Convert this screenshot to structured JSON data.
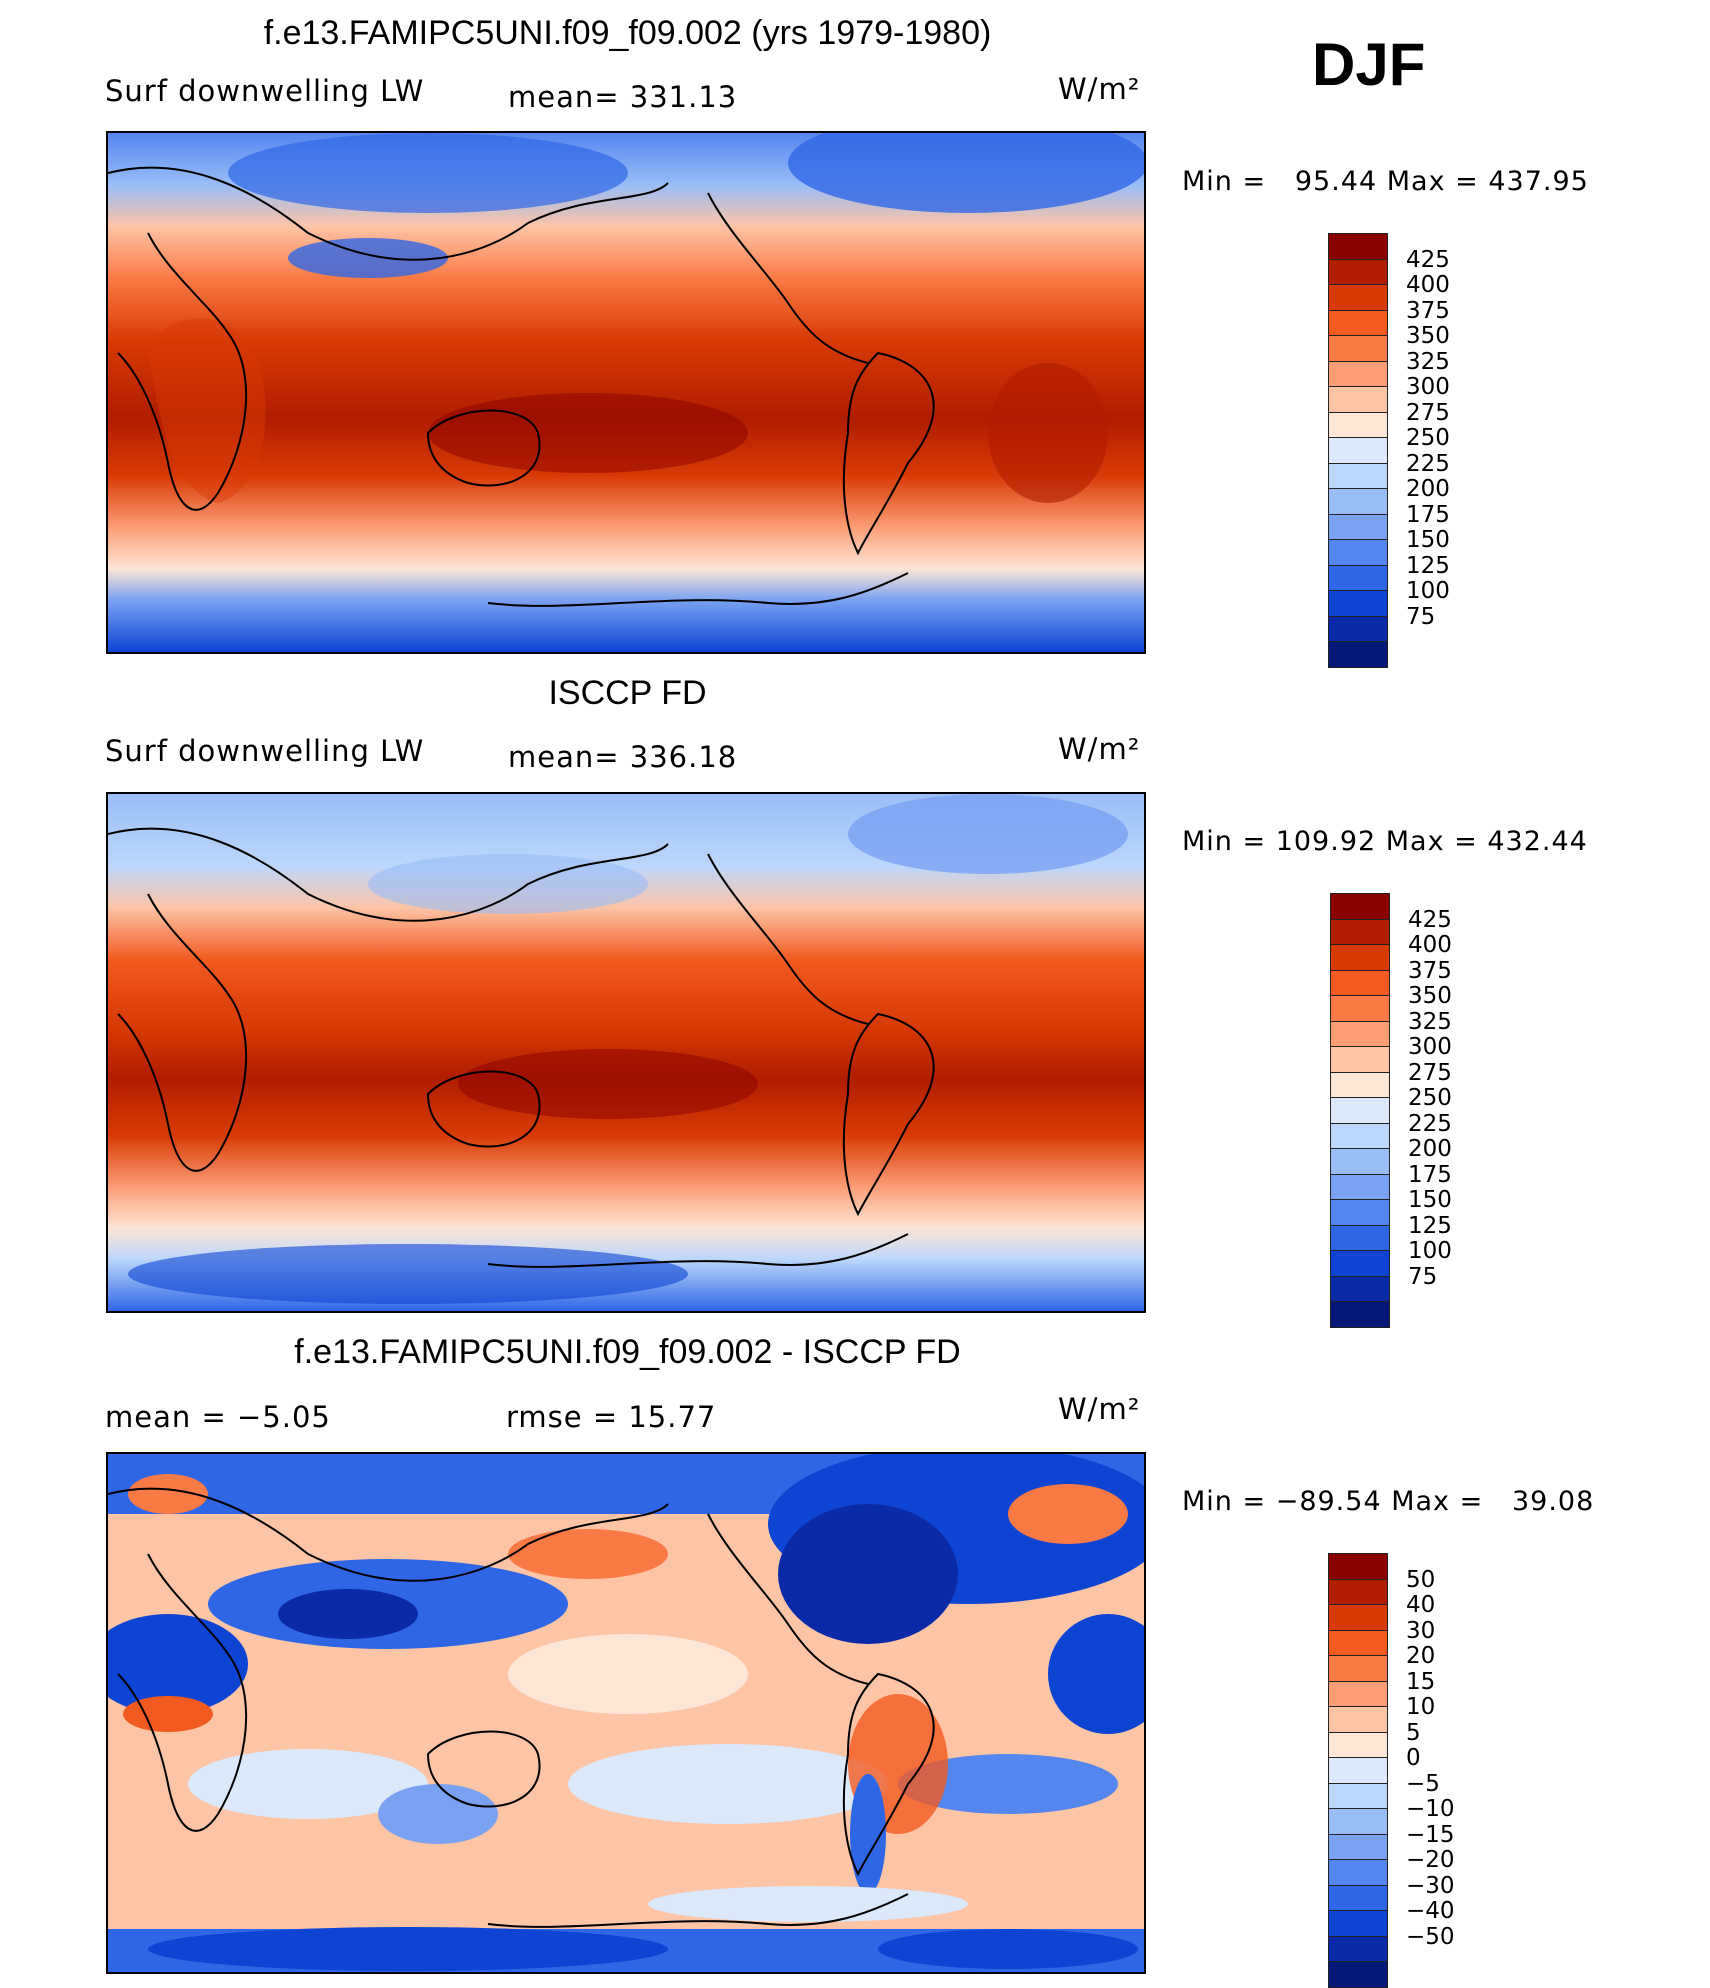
{
  "season": "DJF",
  "panels": [
    {
      "title": "f.e13.FAMIPC5UNI.f09_f09.002 (yrs 1979-1980)",
      "variable": "Surf downwelling LW",
      "stat": "mean= 331.13",
      "units": "W/m²",
      "minmax": "Min =   95.44 Max = 437.95",
      "colorbar": {
        "labels": [
          "425",
          "400",
          "375",
          "350",
          "325",
          "300",
          "275",
          "250",
          "225",
          "200",
          "175",
          "150",
          "125",
          "100",
          "75"
        ],
        "colors": [
          "#8b0000",
          "#b01d00",
          "#d83a06",
          "#f25a20",
          "#fa7a45",
          "#fc9d76",
          "#fdc4a6",
          "#fde6d6",
          "#dbe9fb",
          "#bcd7fb",
          "#99bdf7",
          "#7aa1f2",
          "#5585ee",
          "#2f66e6",
          "#0d44d4",
          "#0a2aa8",
          "#06177a"
        ]
      }
    },
    {
      "title": "ISCCP FD",
      "variable": "Surf downwelling LW",
      "stat": "mean= 336.18",
      "units": "W/m²",
      "minmax": "Min = 109.92 Max = 432.44",
      "colorbar": {
        "labels": [
          "425",
          "400",
          "375",
          "350",
          "325",
          "300",
          "275",
          "250",
          "225",
          "200",
          "175",
          "150",
          "125",
          "100",
          "75"
        ],
        "colors": [
          "#8b0000",
          "#b01d00",
          "#d83a06",
          "#f25a20",
          "#fa7a45",
          "#fc9d76",
          "#fdc4a6",
          "#fde6d6",
          "#dbe9fb",
          "#bcd7fb",
          "#99bdf7",
          "#7aa1f2",
          "#5585ee",
          "#2f66e6",
          "#0d44d4",
          "#0a2aa8",
          "#06177a"
        ]
      }
    },
    {
      "title": "f.e13.FAMIPC5UNI.f09_f09.002 - ISCCP FD",
      "stat_left": "mean =    −5.05",
      "stat_mid": "rmse =    15.77",
      "units": "W/m²",
      "minmax": "Min = −89.54 Max =   39.08",
      "colorbar": {
        "labels": [
          "50",
          "40",
          "30",
          "20",
          "15",
          "10",
          "5",
          "0",
          "−5",
          "−10",
          "−15",
          "−20",
          "−30",
          "−40",
          "−50"
        ],
        "colors": [
          "#8b0000",
          "#b01d00",
          "#d83a06",
          "#f25a20",
          "#fa7a45",
          "#fc9d76",
          "#fdc4a6",
          "#fde6d6",
          "#dbe9fb",
          "#bcd7fb",
          "#99bdf7",
          "#7aa1f2",
          "#5585ee",
          "#2f66e6",
          "#0d44d4",
          "#0a2aa8",
          "#06177a"
        ]
      }
    }
  ]
}
